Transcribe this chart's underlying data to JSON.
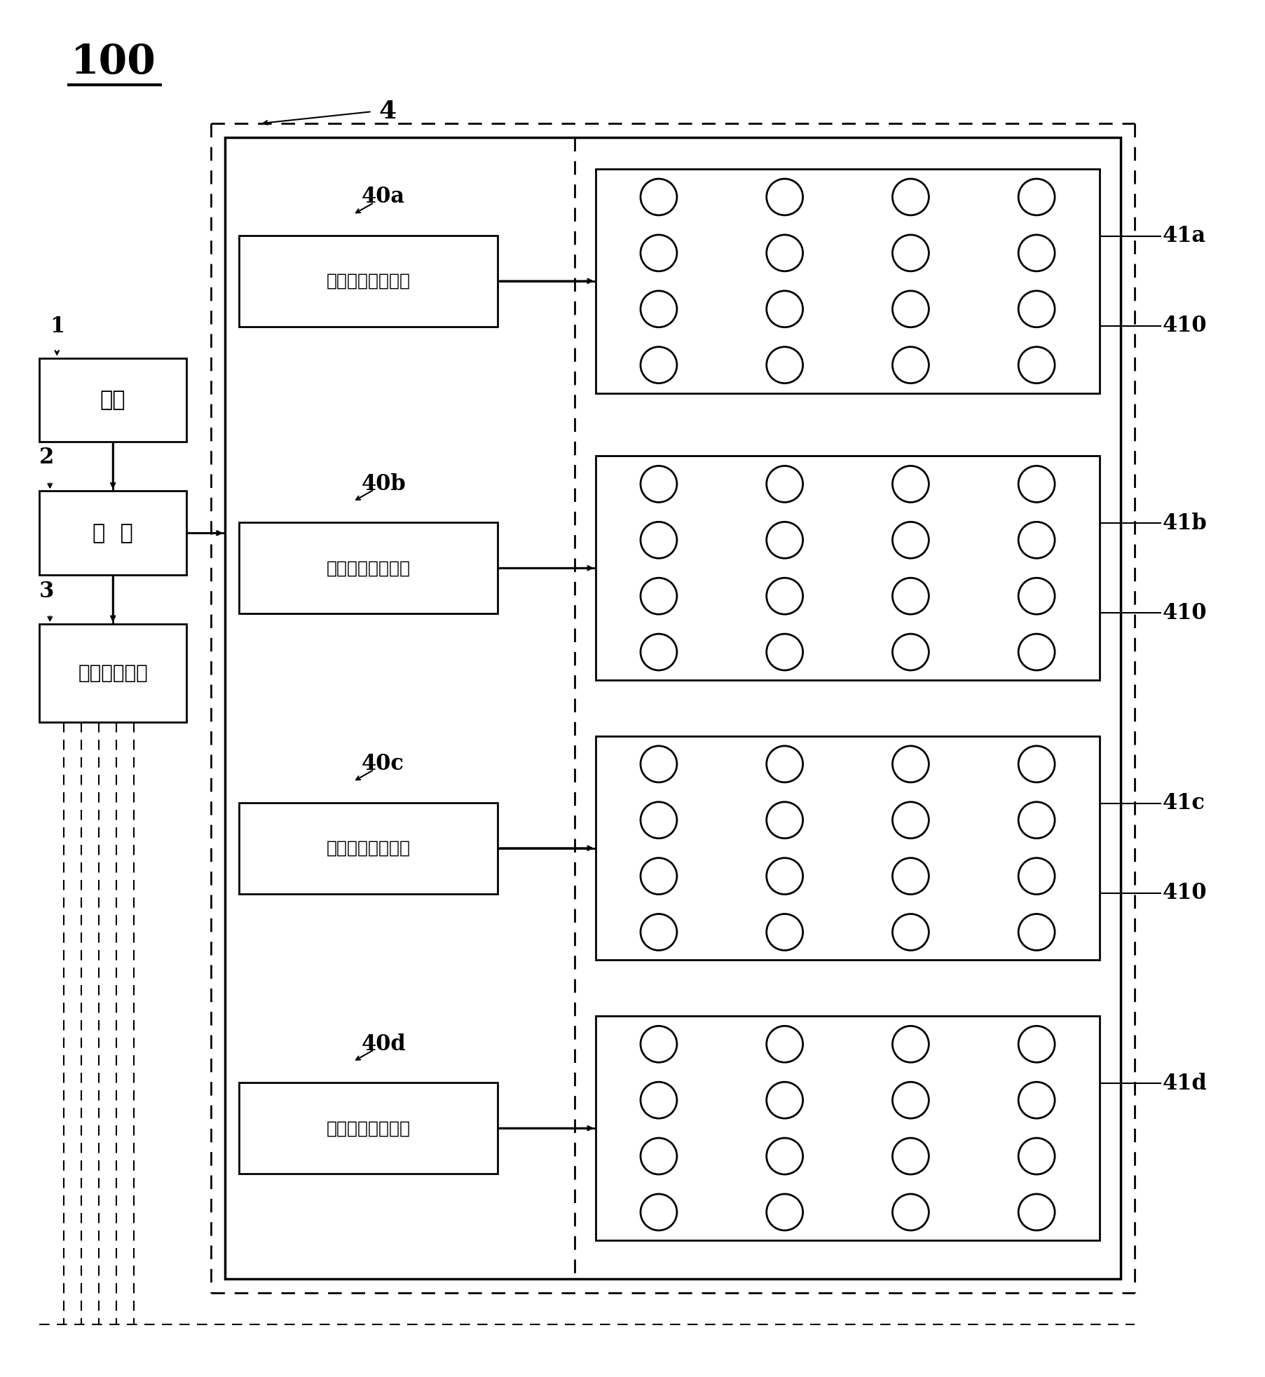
{
  "bg_color": "#ffffff",
  "fig_width": 18.05,
  "fig_height": 19.64,
  "lc": "#000000",
  "label_100": "100",
  "label_4": "4",
  "label_1": "1",
  "label_2": "2",
  "label_3": "3",
  "label_40a": "40a",
  "label_40b": "40b",
  "label_40c": "40c",
  "label_40d": "40d",
  "label_41a": "41a",
  "label_41b": "41b",
  "label_41c": "41c",
  "label_41d": "41d",
  "label_410": "410",
  "box1_text": "电源",
  "box2_text": "控  制",
  "box3_text": "数据传输模块",
  "decoder_text": "解码器和多路开关",
  "lw_thin": 1.5,
  "lw_med": 2.0,
  "lw_thick": 2.5
}
